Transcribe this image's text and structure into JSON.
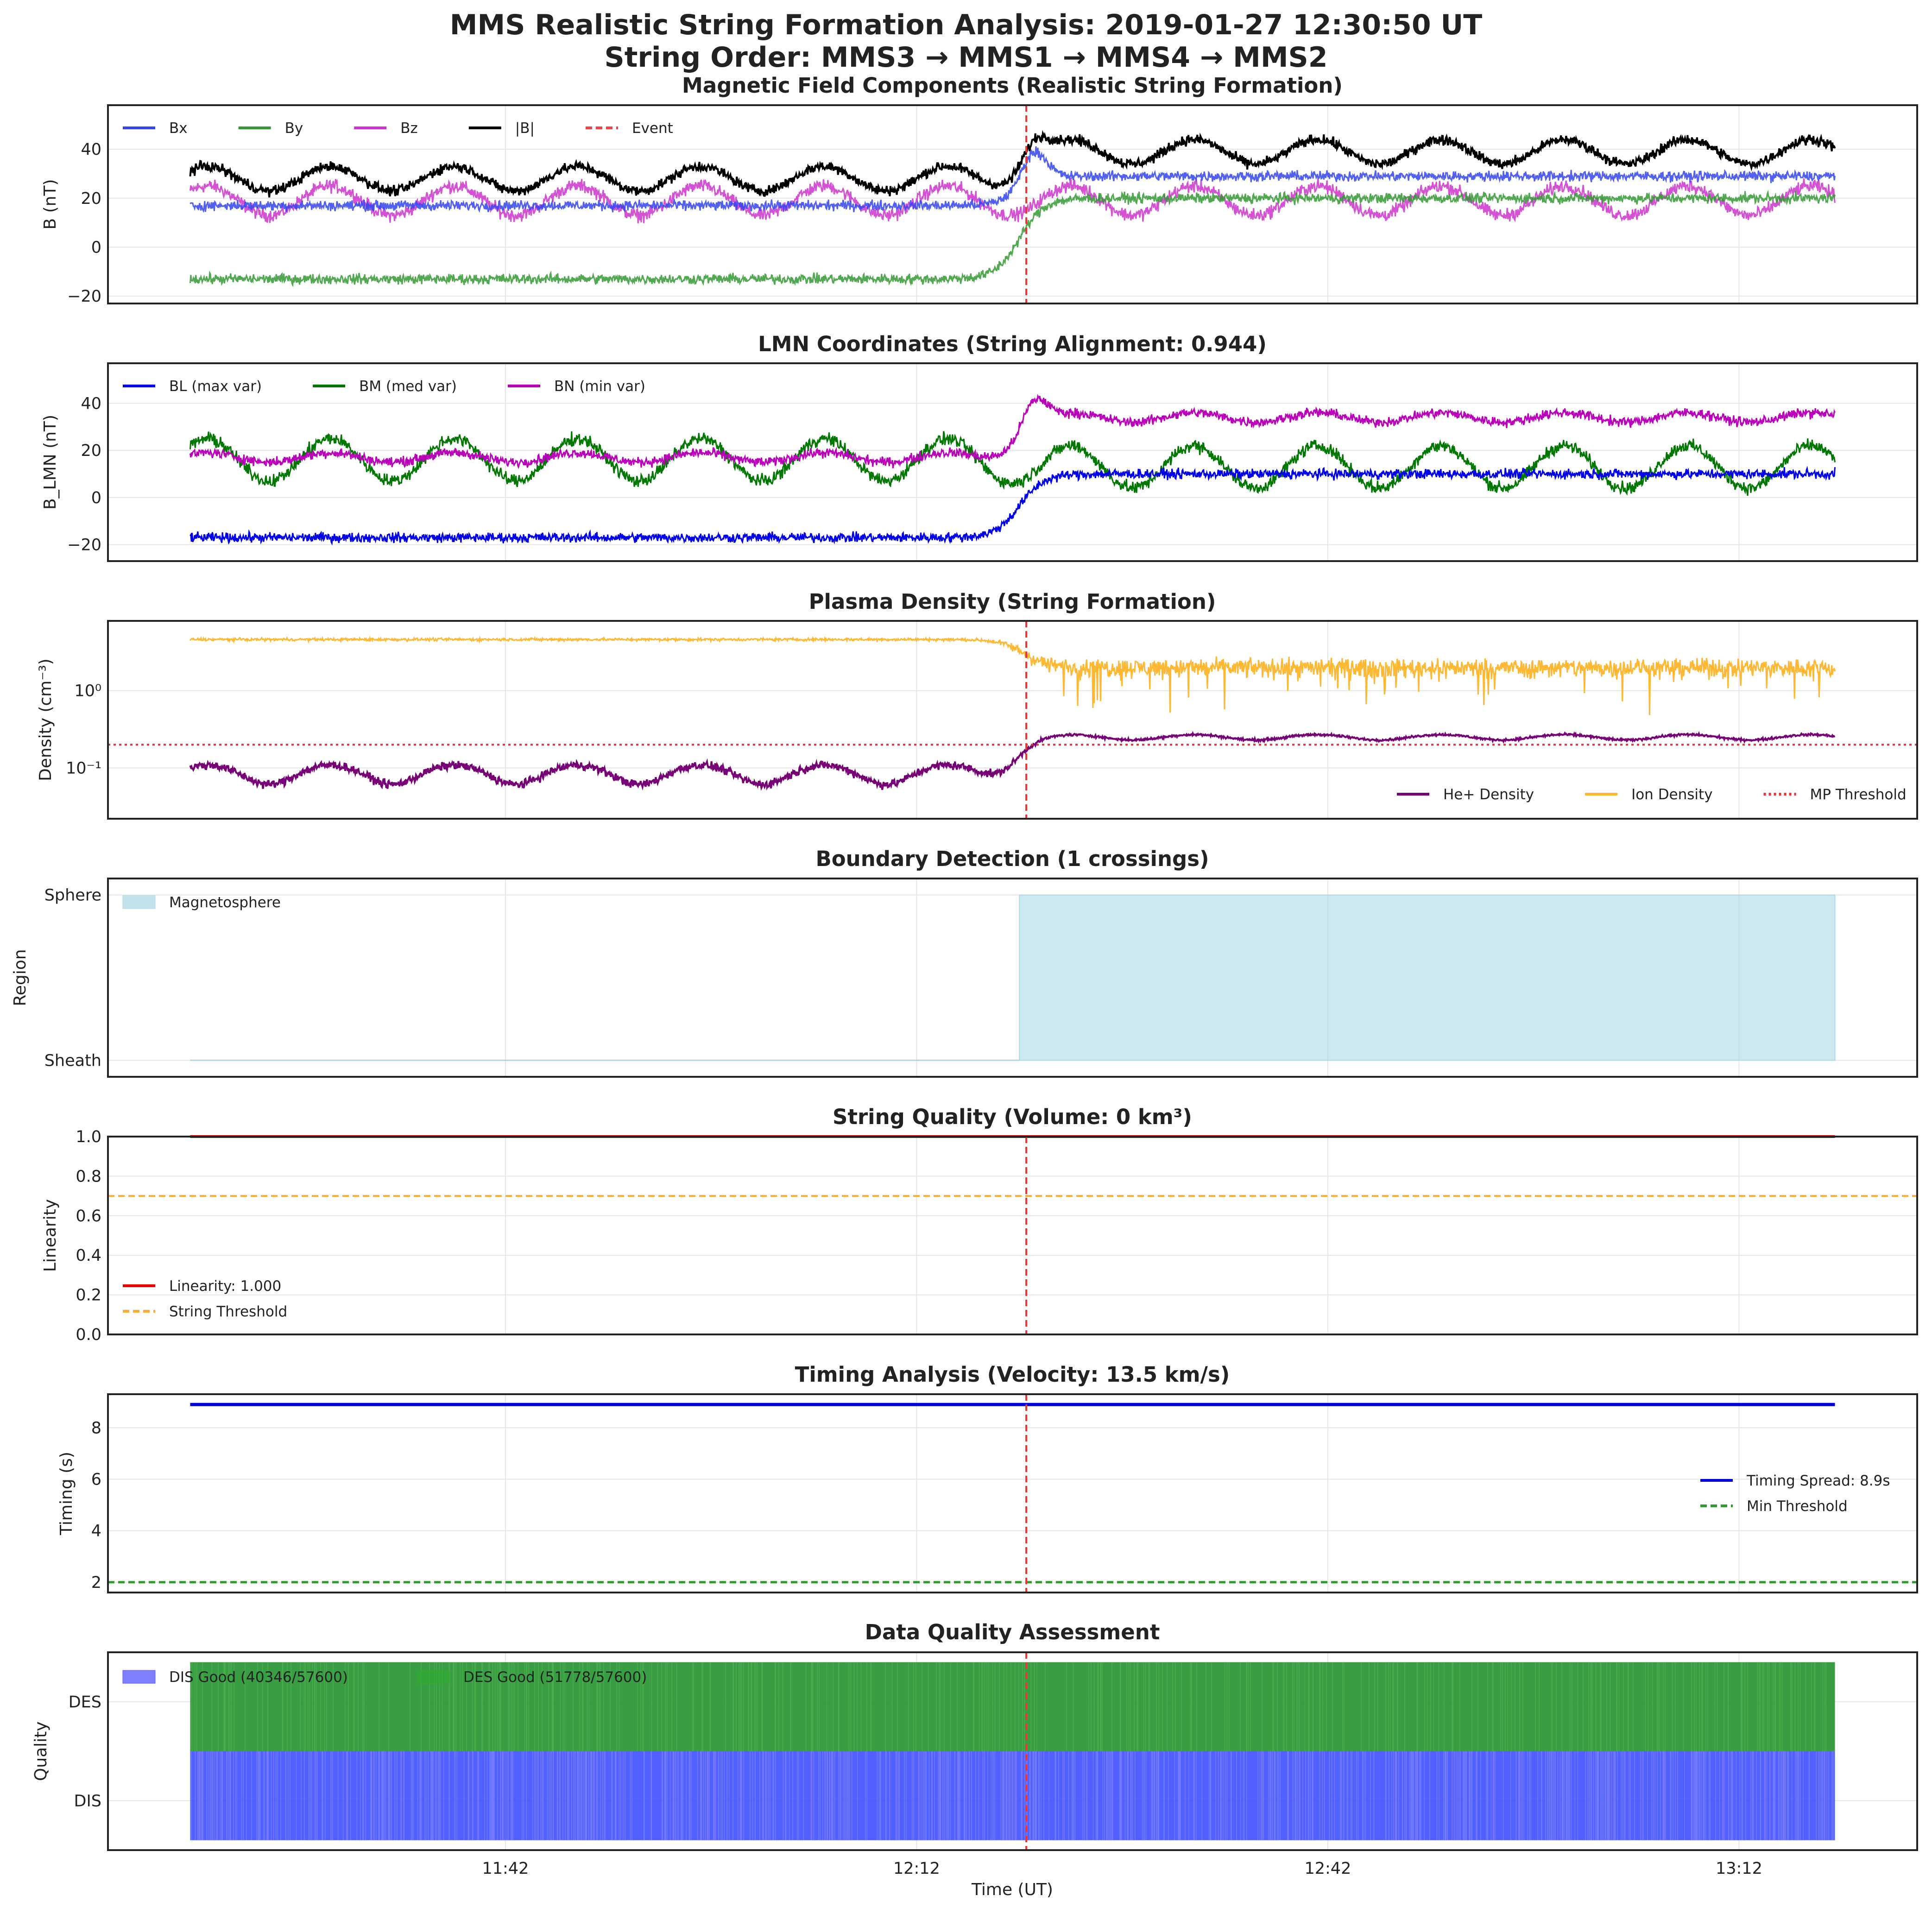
{
  "figure": {
    "title_line1": "MMS Realistic String Formation Analysis: 2019-01-27 12:30:50 UT",
    "title_line2": "String Order: MMS3 → MMS1 → MMS4 → MMS2",
    "xlabel": "Time (UT)",
    "x_tick_labels": [
      "11:42",
      "12:12",
      "12:42",
      "13:12"
    ]
  },
  "chart_data": [
    {
      "id": "mag",
      "type": "line",
      "title": "Magnetic Field Components (Realistic String Formation)",
      "ylabel": "B (nT)",
      "x_range_minutes": [
        -59,
        73
      ],
      "ylim": [
        -23,
        58
      ],
      "yticks": [
        -20,
        0,
        20,
        40
      ],
      "ytick_labels": [
        "−20",
        "0",
        "20",
        "40"
      ],
      "event_minute": 8,
      "legend_loc": "upper-left",
      "legend": [
        {
          "label": "Bx",
          "color": "#3344ee",
          "style": "solid"
        },
        {
          "label": "By",
          "color": "#339933",
          "style": "solid"
        },
        {
          "label": "Bz",
          "color": "#cc33cc",
          "style": "solid"
        },
        {
          "label": "|B|",
          "color": "#000000",
          "style": "solid"
        },
        {
          "label": "Event",
          "color": "#ee4444",
          "style": "dashed"
        }
      ],
      "series": [
        {
          "name": "Bz",
          "color": "#cc33cc",
          "pre": 19,
          "post": 19,
          "amp": 6,
          "noise": 4
        },
        {
          "name": "By",
          "color": "#339933",
          "pre": -13,
          "post": 20,
          "amp": 0,
          "noise": 3
        },
        {
          "name": "Bx",
          "color": "#3344ee",
          "pre": 17,
          "post": 29,
          "amp": 0,
          "noise": 3,
          "peak": 46
        },
        {
          "name": "|B|",
          "color": "#000000",
          "pre": 28,
          "post": 39,
          "amp": 5,
          "noise": 3,
          "peak": 51
        }
      ]
    },
    {
      "id": "lmn",
      "type": "line",
      "title": "LMN Coordinates (String Alignment: 0.944)",
      "ylabel": "B_LMN (nT)",
      "x_range_minutes": [
        -59,
        73
      ],
      "ylim": [
        -27,
        57
      ],
      "yticks": [
        -20,
        0,
        20,
        40
      ],
      "ytick_labels": [
        "−20",
        "0",
        "20",
        "40"
      ],
      "legend_loc": "upper-left",
      "legend": [
        {
          "label": "BL (max var)",
          "color": "#0000ee",
          "style": "solid"
        },
        {
          "label": "BM (med var)",
          "color": "#007700",
          "style": "solid"
        },
        {
          "label": "BN (min var)",
          "color": "#bb00bb",
          "style": "solid"
        }
      ],
      "series": [
        {
          "name": "BM (med var)",
          "color": "#007700",
          "pre": 16,
          "post": 13,
          "amp": 9,
          "noise": 4
        },
        {
          "name": "BL (max var)",
          "color": "#0000ee",
          "pre": -17,
          "post": 10,
          "amp": 0,
          "noise": 3
        },
        {
          "name": "BN (min var)",
          "color": "#bb00bb",
          "pre": 17,
          "post": 34,
          "amp": 2,
          "noise": 3,
          "peak": 50
        }
      ]
    },
    {
      "id": "density",
      "type": "line",
      "scale": "log",
      "title": "Plasma Density (String Formation)",
      "ylabel": "Density (cm⁻³)",
      "x_range_minutes": [
        -59,
        73
      ],
      "ylim": [
        0.022,
        8
      ],
      "yticks": [
        0.1,
        1
      ],
      "ytick_labels": [
        "10⁻¹",
        "10⁰"
      ],
      "event_minute": 8,
      "threshold": 0.2,
      "legend_loc": "lower-right",
      "legend": [
        {
          "label": "He+ Density",
          "color": "#770077",
          "style": "solid"
        },
        {
          "label": "Ion Density",
          "color": "#ffb833",
          "style": "solid"
        },
        {
          "label": "MP Threshold",
          "color": "#ee3333",
          "style": "dotted"
        }
      ],
      "series": [
        {
          "name": "Ion Density",
          "color": "#ffb833",
          "pre": 4.6,
          "post": 2.0
        },
        {
          "name": "He+ Density",
          "color": "#770077",
          "pre": 0.085,
          "post": 0.25
        }
      ]
    },
    {
      "id": "boundary",
      "type": "area",
      "title": "Boundary Detection (1 crossings)",
      "ylabel": "Region",
      "x_range_minutes": [
        -59,
        73
      ],
      "ylim": [
        -0.1,
        1.1
      ],
      "ytick_labels": [
        "Sheath",
        "Sphere"
      ],
      "legend_loc": "upper-left",
      "legend": [
        {
          "label": "Magnetosphere",
          "color": "#add8e6"
        }
      ],
      "crossing_minute": 7.5,
      "data_start_minute": -53,
      "data_end_minute": 67
    },
    {
      "id": "quality",
      "type": "line",
      "title": "String Quality (Volume: 0 km³)",
      "ylabel": "Linearity",
      "x_range_minutes": [
        -59,
        73
      ],
      "ylim": [
        0,
        1
      ],
      "yticks": [
        0,
        0.2,
        0.4,
        0.6,
        0.8,
        1.0
      ],
      "ytick_labels": [
        "0.0",
        "0.2",
        "0.4",
        "0.6",
        "0.8",
        "1.0"
      ],
      "event_minute": 8,
      "legend_loc": "lower-left",
      "legend": [
        {
          "label": "Linearity: 1.000",
          "color": "#ee0000",
          "style": "solid"
        },
        {
          "label": "String Threshold",
          "color": "#ffaa33",
          "style": "dashed"
        }
      ],
      "linearity": 1.0,
      "threshold": 0.7
    },
    {
      "id": "timing",
      "type": "line",
      "title": "Timing Analysis (Velocity: 13.5 km/s)",
      "ylabel": "Timing (s)",
      "x_range_minutes": [
        -59,
        73
      ],
      "ylim": [
        1.6,
        9.3
      ],
      "yticks": [
        2,
        4,
        6,
        8
      ],
      "ytick_labels": [
        "2",
        "4",
        "6",
        "8"
      ],
      "event_minute": 8,
      "legend_loc": "center-right",
      "legend": [
        {
          "label": "Timing Spread: 8.9s",
          "color": "#0000dd",
          "style": "solid"
        },
        {
          "label": "Min Threshold",
          "color": "#339933",
          "style": "dashed"
        }
      ],
      "timing_spread": 8.9,
      "min_threshold": 2.0
    },
    {
      "id": "dataquality",
      "type": "area",
      "title": "Data Quality Assessment",
      "ylabel": "Quality",
      "xlabel": "Time (UT)",
      "x_range_minutes": [
        -59,
        73
      ],
      "ylim": [
        0.5,
        2.5
      ],
      "ytick_labels": [
        "DIS",
        "DES"
      ],
      "event_minute": 8,
      "legend_loc": "upper-left",
      "legend": [
        {
          "label": "DIS Good (40346/57600)",
          "color": "#5555ff"
        },
        {
          "label": "DES Good (51778/57600)",
          "color": "#33aa33"
        }
      ],
      "dis_good": 40346,
      "des_good": 51778,
      "total": 57600
    }
  ]
}
